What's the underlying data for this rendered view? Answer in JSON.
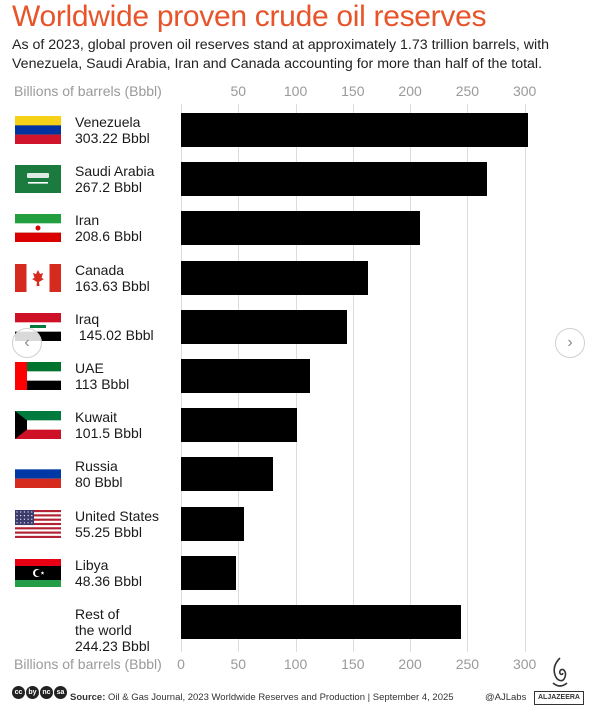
{
  "header": {
    "title": "Worldwide proven crude oil reserves",
    "subtitle": "As of 2023, global proven oil reserves stand at approximately 1.73 trillion barrels, with Venezuela, Saudi Arabia, Iran and Canada accounting for more than half of the total."
  },
  "chart_data": {
    "type": "bar",
    "orientation": "horizontal",
    "title": "Worldwide proven crude oil reserves",
    "xlabel": "Billions of barrels (Bbbl)",
    "xlim": [
      0,
      310
    ],
    "ticks_top": [
      "50",
      "100",
      "150",
      "200",
      "250",
      "300"
    ],
    "ticks_bottom": [
      "0",
      "50",
      "100",
      "150",
      "200",
      "250",
      "300"
    ],
    "grid": true,
    "categories": [
      "Venezuela",
      "Saudi Arabia",
      "Iran",
      "Canada",
      "Iraq",
      "UAE",
      "Kuwait",
      "Russia",
      "United States",
      "Libya",
      "Rest of the world"
    ],
    "values": [
      303.22,
      267.2,
      208.6,
      163.63,
      145.02,
      113,
      101.5,
      80,
      55.25,
      48.36,
      244.23
    ],
    "labels": [
      "Venezuela\n303.22 Bbbl",
      "Saudi Arabia\n267.2 Bbbl",
      "Iran\n208.6 Bbbl",
      "Canada\n163.63 Bbbl",
      "Iraq\n 145.02 Bbbl",
      "UAE\n113 Bbbl",
      "Kuwait\n101.5 Bbbl",
      "Russia\n80 Bbbl",
      "United States\n55.25 Bbbl",
      "Libya\n48.36 Bbbl",
      "Rest of\nthe world\n244.23 Bbbl"
    ],
    "flags": [
      "venezuela",
      "saudi-arabia",
      "iran",
      "canada",
      "iraq",
      "uae",
      "kuwait",
      "russia",
      "united-states",
      "libya",
      ""
    ]
  },
  "footer": {
    "source_label": "Source:",
    "source_text": " Oil & Gas Journal, 2023 Worldwide Reserves and Production  |  September 4, 2025",
    "handle": "@AJLabs",
    "brand": "ALJAZEERA",
    "cc_icons": [
      "cc",
      "by",
      "nc",
      "sa"
    ]
  },
  "colors": {
    "title": "#e8542a",
    "bar": "#000000",
    "tick": "#9a9a9a",
    "grid": "#dcdcdc"
  }
}
